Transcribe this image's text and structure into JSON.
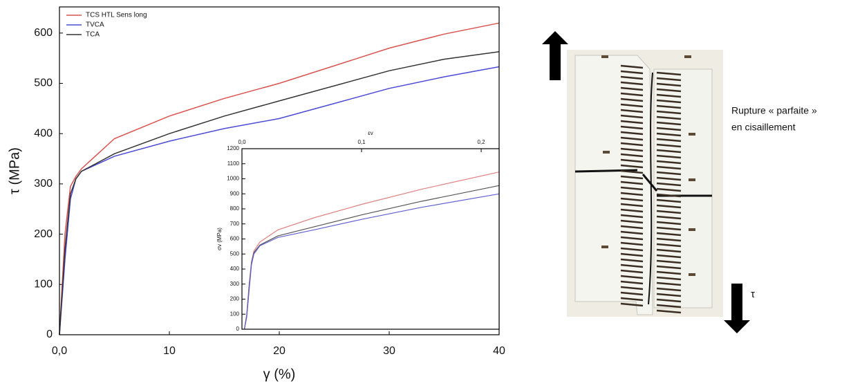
{
  "chart_data": [
    {
      "type": "line",
      "x_label": "γ (%)",
      "y_label": "τ (MPa)",
      "x": [
        0,
        0.5,
        1,
        1.5,
        2,
        5,
        10,
        15,
        20,
        25,
        30,
        35,
        40
      ],
      "series": [
        {
          "name": "TCS HTL Sens long",
          "color": "#d9534f",
          "values": [
            0,
            200,
            295,
            315,
            330,
            390,
            435,
            470,
            500,
            535,
            570,
            598,
            620
          ]
        },
        {
          "name": "TVCA",
          "color": "#4a4ad6",
          "values": [
            0,
            150,
            270,
            310,
            325,
            355,
            385,
            410,
            430,
            460,
            490,
            513,
            533
          ]
        },
        {
          "name": "TCA",
          "color": "#333333",
          "values": [
            0,
            170,
            280,
            310,
            325,
            360,
            400,
            435,
            465,
            495,
            525,
            548,
            563
          ]
        }
      ],
      "xlim": [
        0,
        40
      ],
      "ylim": [
        0,
        652
      ],
      "xticks": [
        {
          "value": 0,
          "label": "0,0"
        },
        10,
        20,
        30,
        40
      ],
      "yticks": [
        0,
        100,
        200,
        300,
        400,
        500,
        600
      ],
      "legend": "upper left"
    },
    {
      "type": "line",
      "x_label": "εv",
      "y_label": "σv (MPa)",
      "x": [
        0.002,
        0.004,
        0.006,
        0.008,
        0.01,
        0.015,
        0.03,
        0.06,
        0.1,
        0.15,
        0.215
      ],
      "series": [
        {
          "color": "#e08080",
          "values": [
            0,
            100,
            300,
            450,
            520,
            580,
            660,
            740,
            830,
            930,
            1045
          ]
        },
        {
          "color": "#555555",
          "values": [
            0,
            90,
            280,
            440,
            510,
            560,
            620,
            680,
            760,
            850,
            955
          ]
        },
        {
          "color": "#6060d0",
          "values": [
            0,
            80,
            260,
            430,
            500,
            555,
            610,
            660,
            730,
            810,
            900
          ]
        }
      ],
      "xlim": [
        0,
        0.215
      ],
      "ylim": [
        0,
        1200
      ],
      "xticks": [
        {
          "value": 0,
          "label": "0,0"
        },
        {
          "value": 0.1,
          "label": "0,1"
        },
        {
          "value": 0.2,
          "label": "0,2"
        }
      ],
      "yticks": [
        0,
        100,
        200,
        300,
        400,
        500,
        600,
        700,
        800,
        900,
        1000,
        1100,
        1200
      ]
    }
  ],
  "figure": {
    "caption_lines": [
      "Rupture « parfaite »",
      "en cisaillement"
    ],
    "arrow_label": "τ"
  }
}
